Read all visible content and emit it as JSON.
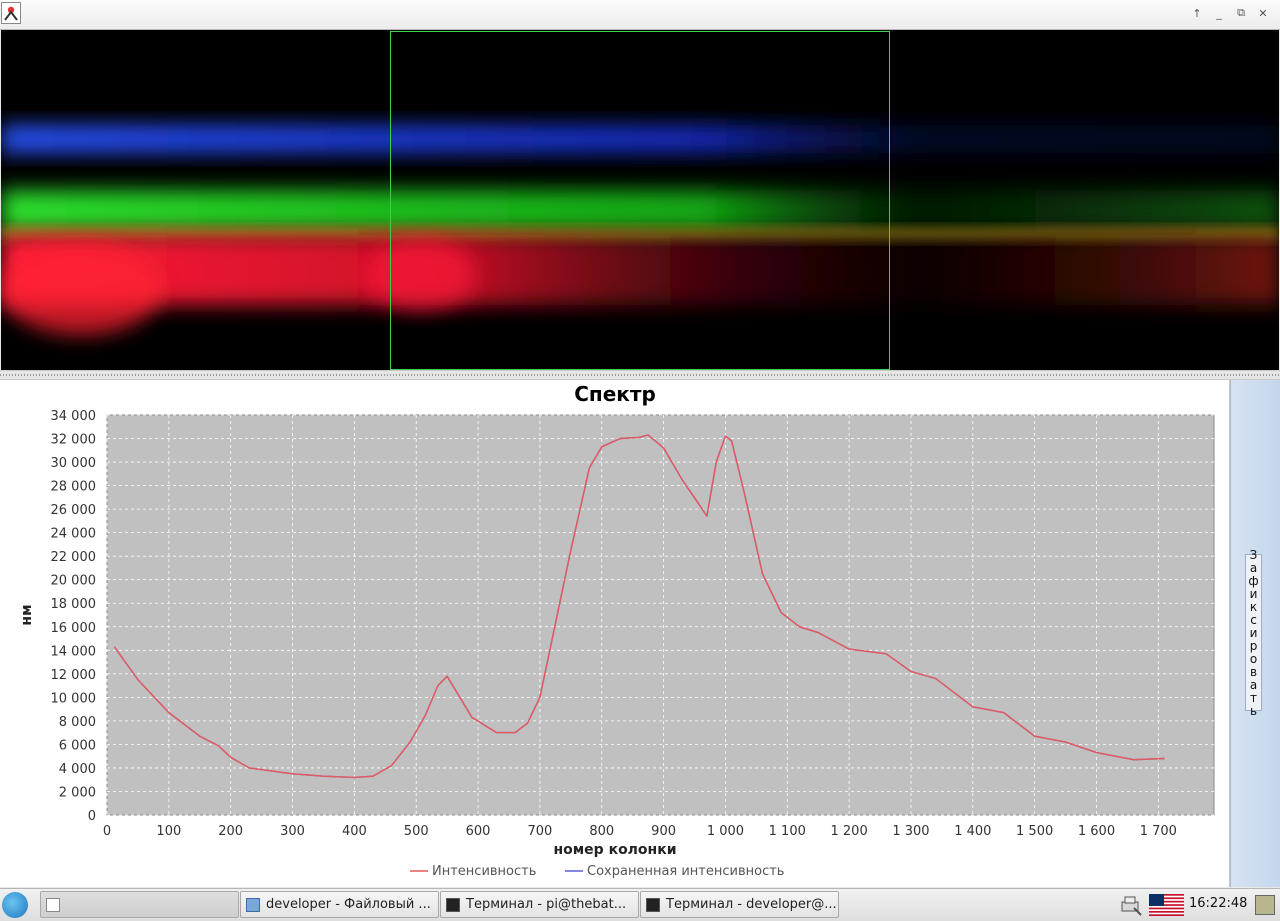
{
  "window": {
    "app_icon": "java-duke-icon",
    "buttons": [
      "pin-icon",
      "minimize-icon",
      "restore-icon",
      "close-icon"
    ],
    "button_glyphs": [
      "↑",
      "_",
      "⧉",
      "✕"
    ]
  },
  "image_view": {
    "selection_color": "#3bd14a"
  },
  "chart_data": {
    "type": "line",
    "title": "Спектр",
    "xlabel": "номер колонки",
    "ylabel": "нм",
    "xlim": [
      0,
      1790
    ],
    "ylim": [
      0,
      34000
    ],
    "x_ticks": [
      0,
      100,
      200,
      300,
      400,
      500,
      600,
      700,
      800,
      900,
      1000,
      1100,
      1200,
      1300,
      1400,
      1500,
      1600,
      1700
    ],
    "x_tick_labels": [
      "0",
      "100",
      "200",
      "300",
      "400",
      "500",
      "600",
      "700",
      "800",
      "900",
      "1 000",
      "1 100",
      "1 200",
      "1 300",
      "1 400",
      "1 500",
      "1 600",
      "1 700"
    ],
    "y_ticks": [
      0,
      2000,
      4000,
      6000,
      8000,
      10000,
      12000,
      14000,
      16000,
      18000,
      20000,
      22000,
      24000,
      26000,
      28000,
      30000,
      32000,
      34000
    ],
    "y_tick_labels": [
      "0",
      "2 000",
      "4 000",
      "6 000",
      "8 000",
      "10 000",
      "12 000",
      "14 000",
      "16 000",
      "18 000",
      "20 000",
      "22 000",
      "24 000",
      "26 000",
      "28 000",
      "30 000",
      "32 000",
      "34 000"
    ],
    "grid": true,
    "plot_background": "#c0c0c0",
    "legend_position": "bottom",
    "series": [
      {
        "name": "Интенсивность",
        "color": "#e8585a",
        "x": [
          12,
          50,
          100,
          150,
          180,
          200,
          230,
          300,
          350,
          400,
          430,
          460,
          490,
          515,
          535,
          550,
          565,
          590,
          630,
          660,
          680,
          700,
          720,
          750,
          780,
          800,
          830,
          860,
          875,
          900,
          930,
          960,
          970,
          985,
          1000,
          1010,
          1030,
          1060,
          1090,
          1120,
          1150,
          1200,
          1260,
          1300,
          1340,
          1400,
          1450,
          1500,
          1550,
          1600,
          1660,
          1710
        ],
        "values": [
          14300,
          11500,
          8700,
          6700,
          5900,
          4900,
          4000,
          3500,
          3300,
          3200,
          3300,
          4200,
          6200,
          8500,
          11000,
          11800,
          10500,
          8300,
          7000,
          7000,
          7800,
          10000,
          15000,
          22500,
          29500,
          31300,
          32000,
          32100,
          32300,
          31200,
          28500,
          26200,
          25400,
          30000,
          32200,
          31800,
          27500,
          20500,
          17200,
          16000,
          15500,
          14100,
          13700,
          12200,
          11600,
          9200,
          8700,
          6700,
          6200,
          5300,
          4700,
          4800
        ]
      },
      {
        "name": "Сохраненная интенсивность",
        "color": "#5e5ed6",
        "x": [
          12,
          50,
          100,
          150,
          180,
          200,
          230,
          300,
          350,
          400,
          430,
          460,
          490,
          515,
          535,
          550,
          565,
          590,
          630,
          660,
          680,
          700,
          720,
          750,
          780,
          800,
          830,
          860,
          875,
          900,
          930,
          960,
          970,
          985,
          1000,
          1010,
          1030,
          1060,
          1090,
          1120,
          1150,
          1200,
          1260,
          1300,
          1340,
          1400,
          1450,
          1500,
          1550,
          1600,
          1660,
          1710
        ],
        "values": [
          14300,
          11500,
          8700,
          6700,
          5900,
          4900,
          4000,
          3500,
          3300,
          3200,
          3300,
          4200,
          6200,
          8500,
          11000,
          11800,
          10500,
          8300,
          7000,
          7000,
          7800,
          10000,
          15000,
          22500,
          29500,
          31300,
          32000,
          32100,
          32300,
          31200,
          28500,
          26200,
          25400,
          30000,
          32200,
          31800,
          27500,
          20500,
          17200,
          16000,
          15500,
          14100,
          13700,
          12200,
          11600,
          9200,
          8700,
          6700,
          6200,
          5300,
          4700,
          4800
        ]
      }
    ]
  },
  "side_panel": {
    "fix_button_label": "Зафиксировать"
  },
  "taskbar": {
    "start_icon": "start-menu-icon",
    "tasks": [
      {
        "label": "",
        "icon": "java-app-icon",
        "active": true
      },
      {
        "label": "developer - Файловый ...",
        "icon": "folder-icon",
        "active": false
      },
      {
        "label": "Терминал - pi@thebat...",
        "icon": "terminal-icon",
        "active": false
      },
      {
        "label": "Терминал - developer@...",
        "icon": "terminal-icon",
        "active": false
      }
    ],
    "tray": {
      "network_icon": "network-icon",
      "keyboard_layout_icon": "us-flag-icon",
      "clock": "16:22:48",
      "desktop_icon": "show-desktop-icon"
    }
  }
}
